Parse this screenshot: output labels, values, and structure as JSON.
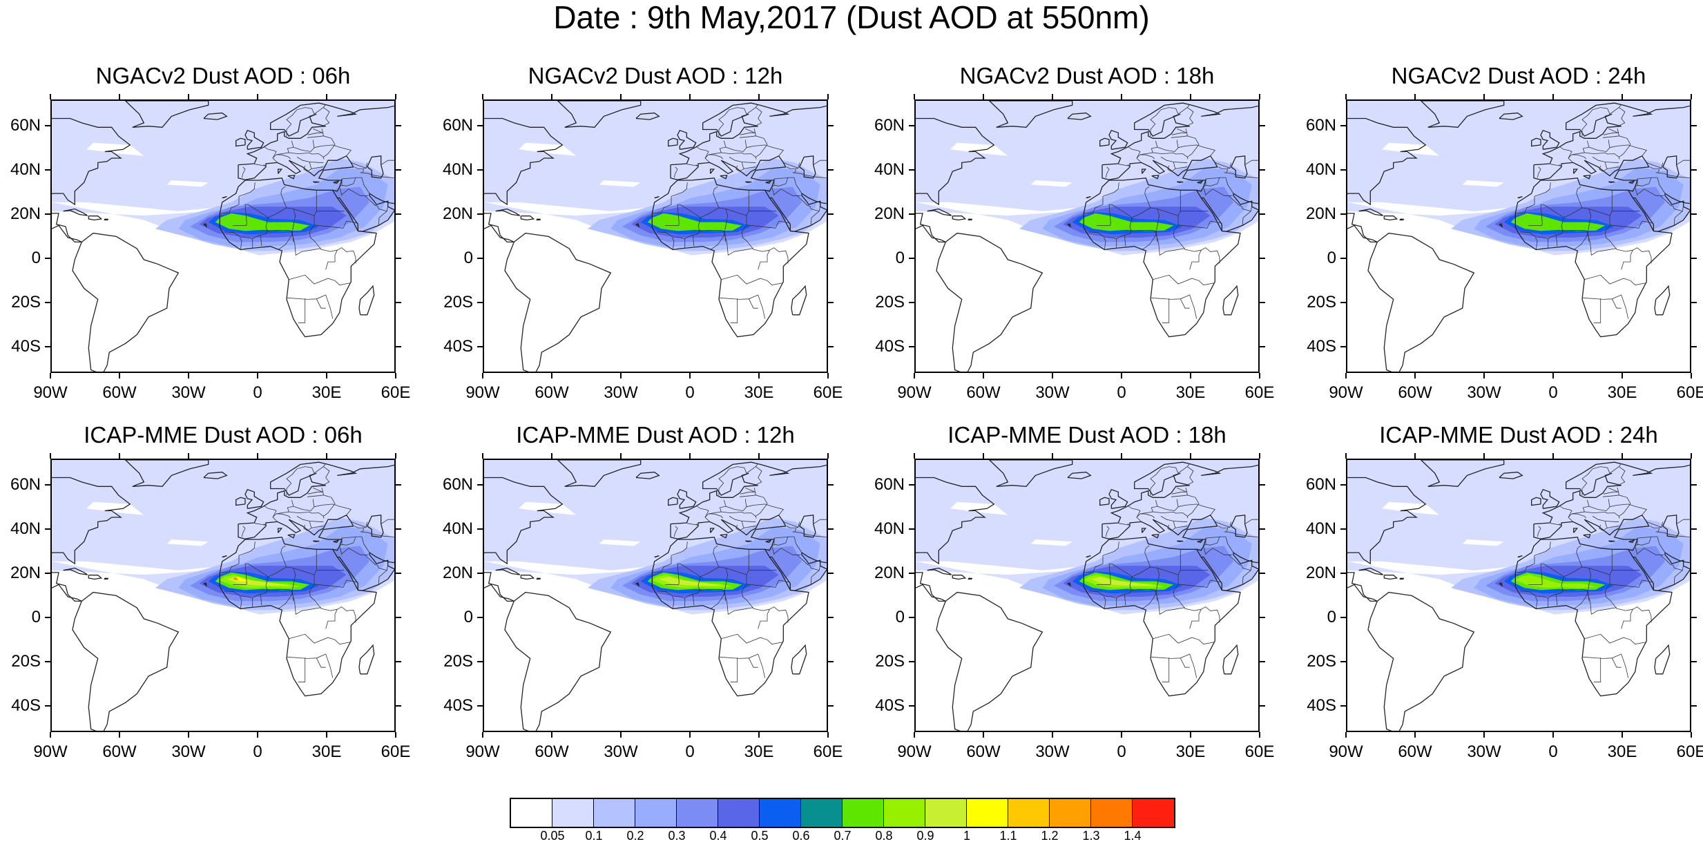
{
  "title": "Date : 9th May,2017 (Dust AOD at 550nm)",
  "panels": [
    {
      "title": "NGACv2 Dust AOD : 06h",
      "row": 0,
      "col": 0,
      "intensity": 0.85
    },
    {
      "title": "NGACv2 Dust AOD : 12h",
      "row": 0,
      "col": 1,
      "intensity": 0.8
    },
    {
      "title": "NGACv2 Dust AOD : 18h",
      "row": 0,
      "col": 2,
      "intensity": 0.8
    },
    {
      "title": "NGACv2 Dust AOD : 24h",
      "row": 0,
      "col": 3,
      "intensity": 0.75
    },
    {
      "title": "ICAP-MME Dust AOD : 06h",
      "row": 1,
      "col": 0,
      "intensity": 1.15
    },
    {
      "title": "ICAP-MME Dust AOD : 12h",
      "row": 1,
      "col": 1,
      "intensity": 1.05
    },
    {
      "title": "ICAP-MME Dust AOD : 18h",
      "row": 1,
      "col": 2,
      "intensity": 1.05
    },
    {
      "title": "ICAP-MME Dust AOD : 24h",
      "row": 1,
      "col": 3,
      "intensity": 0.95
    }
  ],
  "lat_labels": [
    "60N",
    "40N",
    "20N",
    "0",
    "20S",
    "40S"
  ],
  "lon_labels": [
    "90W",
    "60W",
    "30W",
    "0",
    "30E",
    "60E"
  ],
  "colorbar": {
    "labels": [
      "0.05",
      "0.1",
      "0.2",
      "0.3",
      "0.4",
      "0.5",
      "0.6",
      "0.7",
      "0.8",
      "0.9",
      "1",
      "1.1",
      "1.2",
      "1.3",
      "1.4"
    ],
    "colors": [
      "#ffffff",
      "#d6ddff",
      "#b4c3ff",
      "#99adff",
      "#7b8cf5",
      "#5a66e8",
      "#0a5ef0",
      "#089090",
      "#5ee600",
      "#96f000",
      "#c8f030",
      "#ffff00",
      "#ffc800",
      "#ffa000",
      "#ff7800",
      "#ff2010"
    ]
  }
}
